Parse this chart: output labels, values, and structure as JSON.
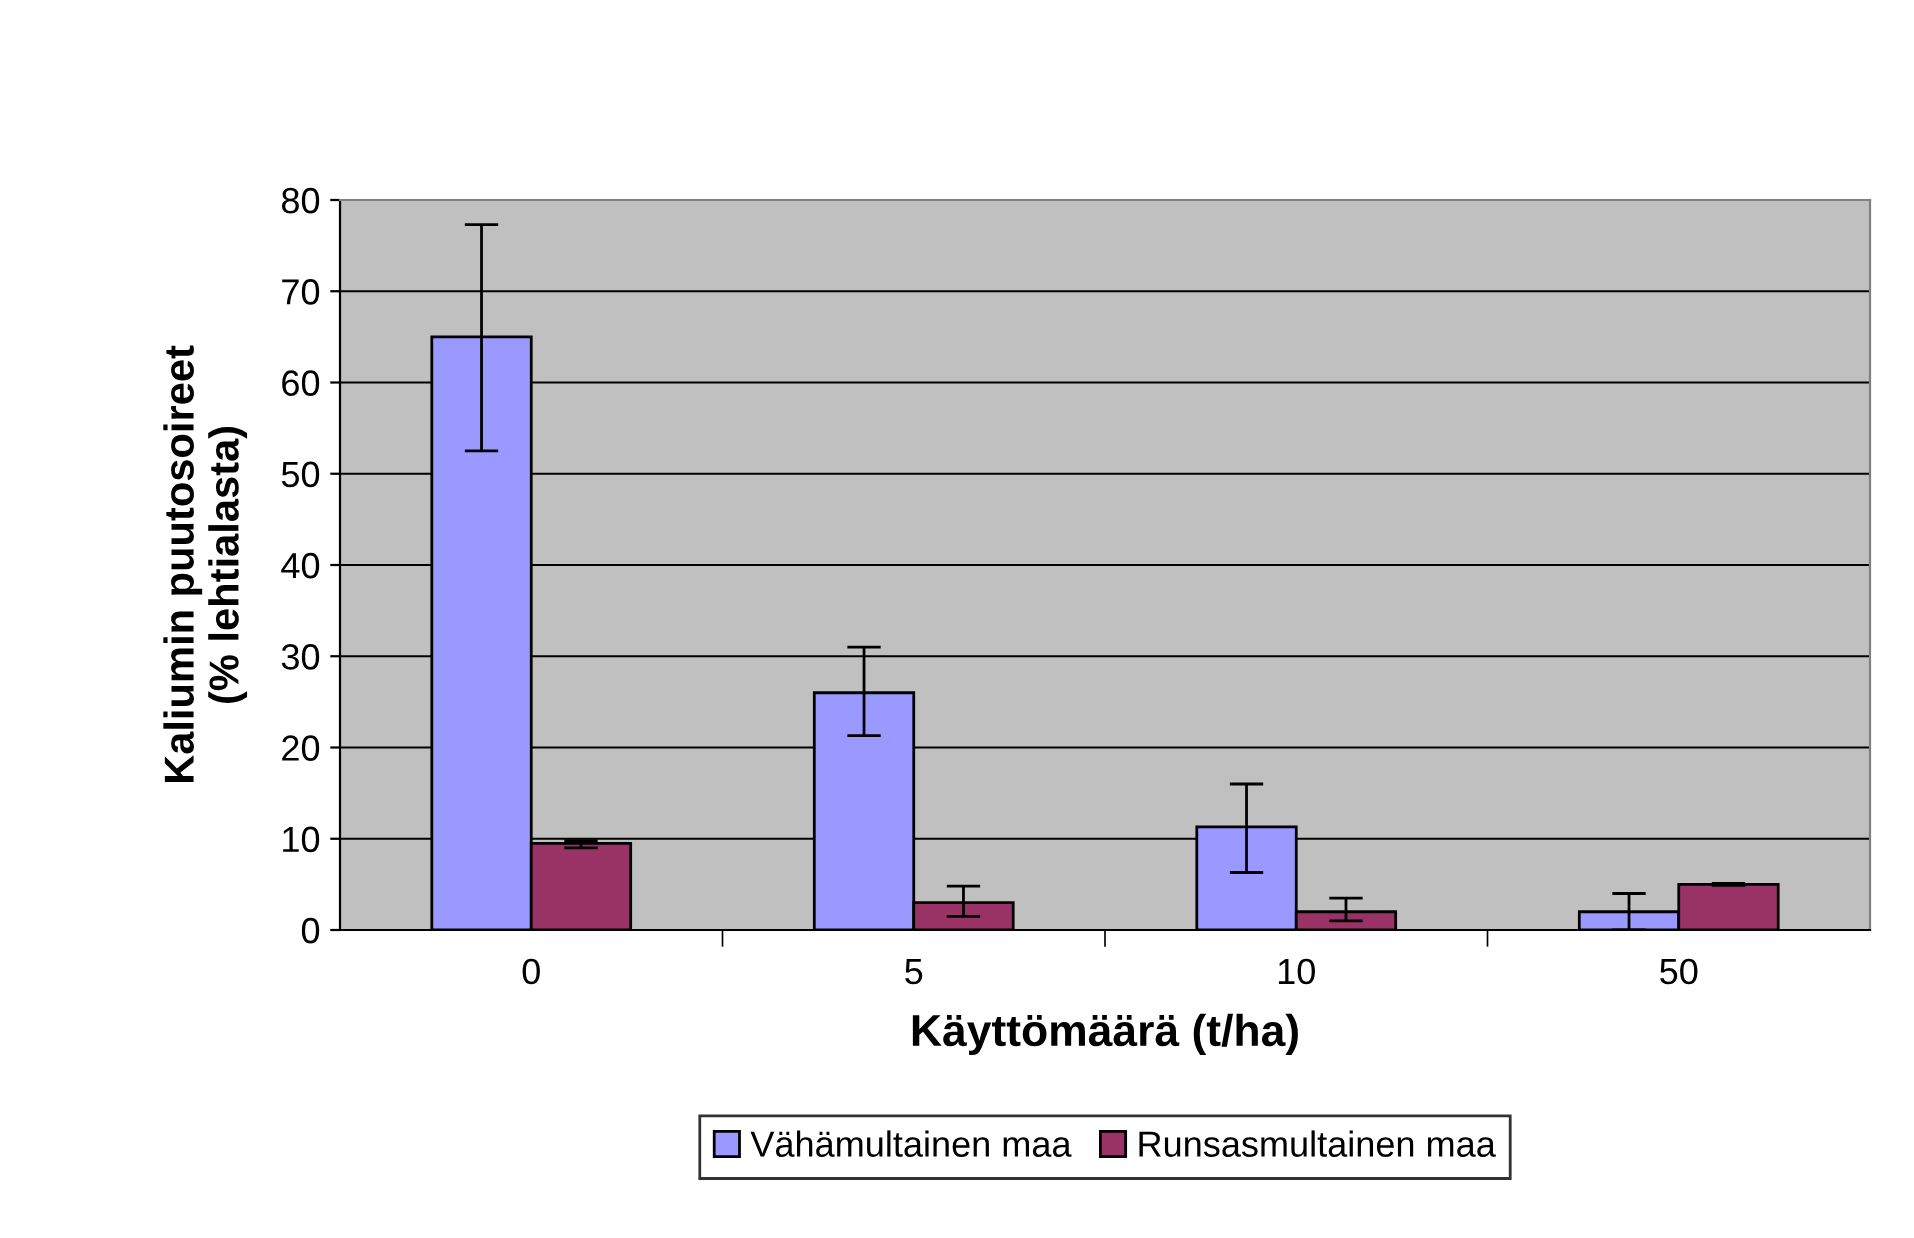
{
  "chart_data": {
    "type": "bar",
    "xlabel": "Käyttömäärä (t/ha)",
    "ylabel": "Kaliumin puutosoireet\n(% lehtialasta)",
    "categories": [
      "0",
      "5",
      "10",
      "50"
    ],
    "series": [
      {
        "name": "Vähämultainen maa",
        "color": "#9999ff",
        "values": [
          65,
          26,
          11.3,
          2
        ],
        "errors": [
          [
            52.5,
            77.3
          ],
          [
            21.3,
            31
          ],
          [
            6.3,
            16
          ],
          [
            0,
            4
          ]
        ]
      },
      {
        "name": "Runsasmultainen maa",
        "color": "#993366",
        "values": [
          9.5,
          3,
          2,
          5
        ],
        "errors": [
          [
            9,
            9.8
          ],
          [
            1.5,
            4.8
          ],
          [
            1,
            3.5
          ],
          [
            4.9,
            5.1
          ]
        ]
      }
    ],
    "ylim": [
      0,
      80
    ],
    "yticks": [
      0,
      10,
      20,
      30,
      40,
      50,
      60,
      70,
      80
    ],
    "grid": "y",
    "legend": "bottom"
  }
}
